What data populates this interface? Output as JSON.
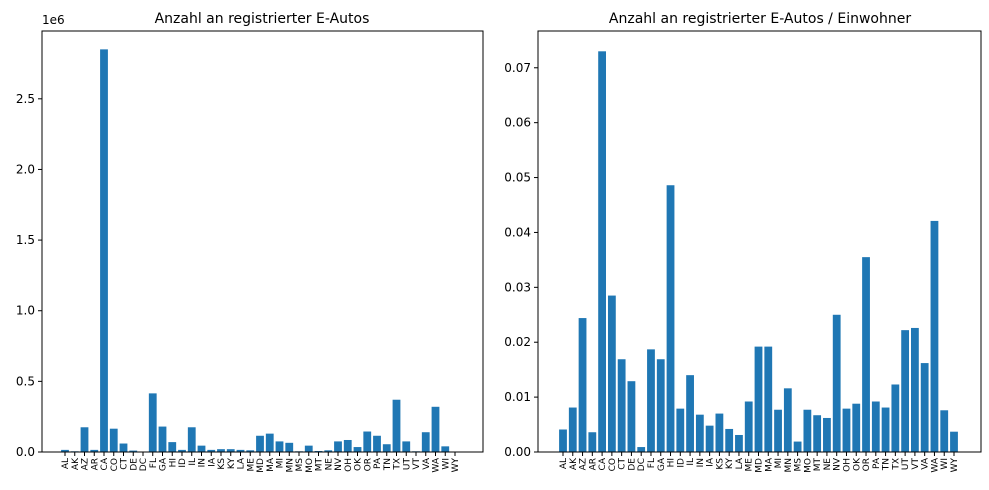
{
  "chart_data": [
    {
      "type": "bar",
      "title": "Anzahl an registrierter E-Autos",
      "xlabel": "",
      "ylabel": "",
      "offset_text": "1e6",
      "ylim": [
        0,
        2.98
      ],
      "yticks": [
        0.0,
        0.5,
        1.0,
        1.5,
        2.0,
        2.5
      ],
      "ytick_labels": [
        "0.0",
        "0.5",
        "1.0",
        "1.5",
        "2.0",
        "2.5"
      ],
      "bar_color": "#1f77b4",
      "categories": [
        "AL",
        "AK",
        "AZ",
        "AR",
        "CA",
        "CO",
        "CT",
        "DE",
        "DC",
        "FL",
        "GA",
        "HI",
        "ID",
        "IL",
        "IN",
        "IA",
        "KS",
        "KY",
        "LA",
        "ME",
        "MD",
        "MA",
        "MI",
        "MN",
        "MS",
        "MO",
        "MT",
        "NE",
        "NV",
        "OH",
        "OK",
        "OR",
        "PA",
        "TN",
        "TX",
        "UT",
        "VT",
        "VA",
        "WA",
        "WI",
        "WY"
      ],
      "values": [
        0.015,
        0.005,
        0.175,
        0.015,
        2.85,
        0.165,
        0.06,
        0.01,
        0.0,
        0.415,
        0.18,
        0.07,
        0.015,
        0.175,
        0.045,
        0.015,
        0.02,
        0.02,
        0.015,
        0.012,
        0.115,
        0.13,
        0.075,
        0.065,
        0.005,
        0.045,
        0.007,
        0.012,
        0.075,
        0.085,
        0.035,
        0.145,
        0.115,
        0.055,
        0.37,
        0.075,
        0.005,
        0.14,
        0.32,
        0.04,
        0.003
      ]
    },
    {
      "type": "bar",
      "title": "Anzahl an registrierter E-Autos / Einwohner",
      "xlabel": "",
      "ylabel": "",
      "ylim": [
        0,
        0.0767
      ],
      "yticks": [
        0.0,
        0.01,
        0.02,
        0.03,
        0.04,
        0.05,
        0.06,
        0.07
      ],
      "ytick_labels": [
        "0.00",
        "0.01",
        "0.02",
        "0.03",
        "0.04",
        "0.05",
        "0.06",
        "0.07"
      ],
      "bar_color": "#1f77b4",
      "categories": [
        "AL",
        "AK",
        "AZ",
        "AR",
        "CA",
        "CO",
        "CT",
        "DE",
        "DC",
        "FL",
        "GA",
        "HI",
        "ID",
        "IL",
        "IN",
        "IA",
        "KS",
        "KY",
        "LA",
        "ME",
        "MD",
        "MA",
        "MI",
        "MN",
        "MS",
        "MO",
        "MT",
        "NE",
        "NV",
        "OH",
        "OK",
        "OR",
        "PA",
        "TN",
        "TX",
        "UT",
        "VT",
        "VA",
        "WA",
        "WI",
        "WY"
      ],
      "values": [
        0.0041,
        0.0081,
        0.0244,
        0.0036,
        0.073,
        0.0285,
        0.0169,
        0.0129,
        0.0009,
        0.0187,
        0.0169,
        0.0486,
        0.0079,
        0.014,
        0.0068,
        0.0048,
        0.007,
        0.0042,
        0.0031,
        0.0092,
        0.0192,
        0.0192,
        0.0077,
        0.0116,
        0.0019,
        0.0077,
        0.0067,
        0.0062,
        0.025,
        0.0079,
        0.0088,
        0.0355,
        0.0092,
        0.0081,
        0.0123,
        0.0222,
        0.0226,
        0.0162,
        0.0421,
        0.0076,
        0.0037
      ]
    }
  ]
}
